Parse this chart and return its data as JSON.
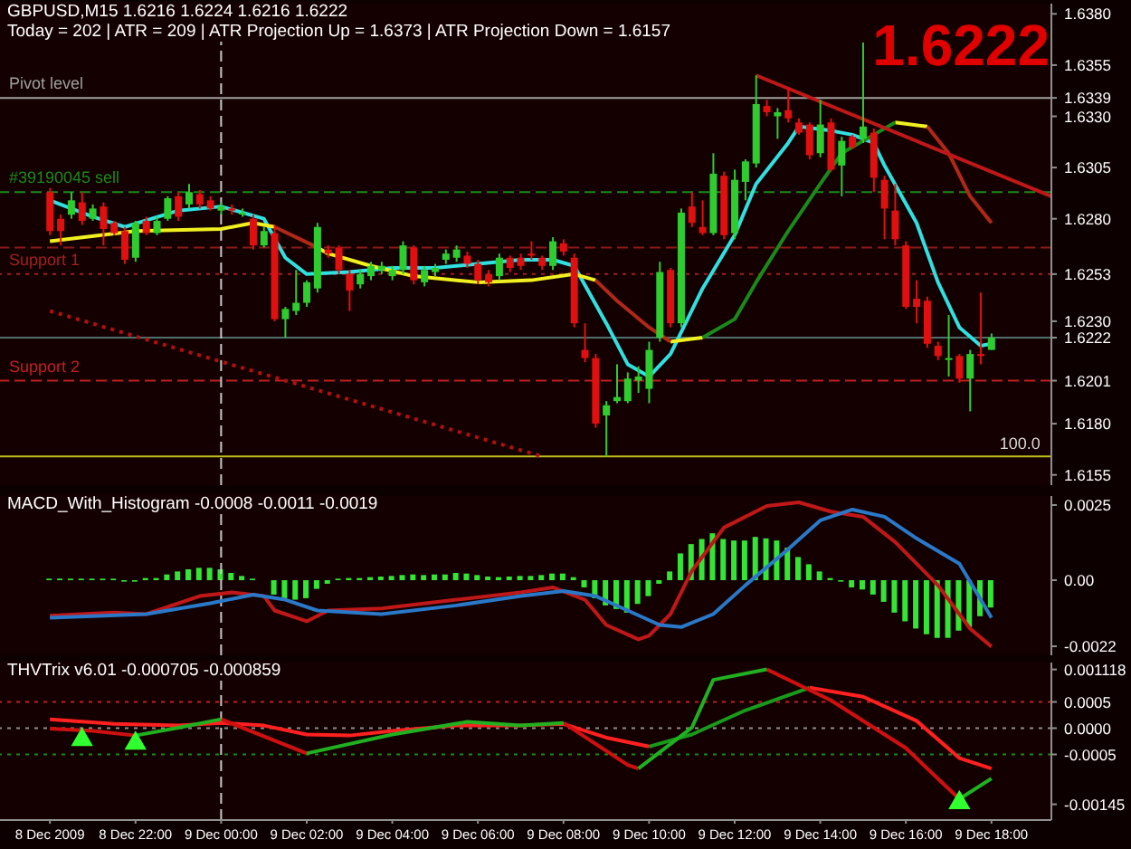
{
  "chart_data": [
    {
      "type": "candlestick",
      "title": "GBPUSD,M15 1.6216 1.6224 1.6216 1.6222",
      "subtitle": "Today = 202 | ATR = 209 | ATR Projection Up = 1.6373 | ATR Projection Down = 1.6157",
      "x": [
        "2009-12-08T20:00",
        "2009-12-08T20:15",
        "2009-12-08T20:30",
        "2009-12-08T20:45",
        "2009-12-08T21:00",
        "2009-12-08T21:15",
        "2009-12-08T21:30",
        "2009-12-08T21:45",
        "2009-12-08T22:00",
        "2009-12-08T22:15",
        "2009-12-08T22:30",
        "2009-12-08T22:45",
        "2009-12-08T23:00",
        "2009-12-08T23:15",
        "2009-12-08T23:30",
        "2009-12-08T23:45",
        "2009-12-09T00:00",
        "2009-12-09T00:15",
        "2009-12-09T00:30",
        "2009-12-09T00:45",
        "2009-12-09T01:00",
        "2009-12-09T01:15",
        "2009-12-09T01:30",
        "2009-12-09T01:45",
        "2009-12-09T02:00",
        "2009-12-09T02:15",
        "2009-12-09T02:30",
        "2009-12-09T02:45",
        "2009-12-09T03:00",
        "2009-12-09T03:15",
        "2009-12-09T03:30",
        "2009-12-09T03:45",
        "2009-12-09T04:00",
        "2009-12-09T04:15",
        "2009-12-09T04:30",
        "2009-12-09T04:45",
        "2009-12-09T05:00",
        "2009-12-09T05:15",
        "2009-12-09T05:30",
        "2009-12-09T05:45",
        "2009-12-09T06:00",
        "2009-12-09T06:15",
        "2009-12-09T06:30",
        "2009-12-09T06:45",
        "2009-12-09T07:00",
        "2009-12-09T07:15",
        "2009-12-09T07:30",
        "2009-12-09T07:45",
        "2009-12-09T08:00",
        "2009-12-09T08:15",
        "2009-12-09T08:30",
        "2009-12-09T08:45",
        "2009-12-09T09:00",
        "2009-12-09T09:15",
        "2009-12-09T09:30",
        "2009-12-09T09:45",
        "2009-12-09T10:00",
        "2009-12-09T10:15",
        "2009-12-09T10:30",
        "2009-12-09T10:45",
        "2009-12-09T11:00",
        "2009-12-09T11:15",
        "2009-12-09T11:30",
        "2009-12-09T11:45",
        "2009-12-09T12:00",
        "2009-12-09T12:15",
        "2009-12-09T12:30",
        "2009-12-09T12:45",
        "2009-12-09T13:00",
        "2009-12-09T13:15",
        "2009-12-09T13:30",
        "2009-12-09T13:45",
        "2009-12-09T14:00",
        "2009-12-09T14:15",
        "2009-12-09T14:30",
        "2009-12-09T14:45",
        "2009-12-09T15:00",
        "2009-12-09T15:15",
        "2009-12-09T15:30",
        "2009-12-09T15:45",
        "2009-12-09T16:00",
        "2009-12-09T16:15",
        "2009-12-09T16:30",
        "2009-12-09T16:45",
        "2009-12-09T17:00",
        "2009-12-09T17:15",
        "2009-12-09T17:30",
        "2009-12-09T17:45",
        "2009-12-09T18:00"
      ],
      "ohlc": [
        [
          1.6293,
          1.6295,
          1.6272,
          1.6274
        ],
        [
          1.628,
          1.6282,
          1.6267,
          1.6274
        ],
        [
          1.6282,
          1.6293,
          1.628,
          1.6289
        ],
        [
          1.6288,
          1.6293,
          1.6277,
          1.6279
        ],
        [
          1.628,
          1.6287,
          1.6279,
          1.6285
        ],
        [
          1.6286,
          1.6288,
          1.6267,
          1.6275
        ],
        [
          1.6278,
          1.6279,
          1.6272,
          1.6273
        ],
        [
          1.6274,
          1.6276,
          1.6258,
          1.626
        ],
        [
          1.6261,
          1.6279,
          1.6259,
          1.6278
        ],
        [
          1.6279,
          1.6281,
          1.6272,
          1.6273
        ],
        [
          1.6273,
          1.6281,
          1.6272,
          1.6279
        ],
        [
          1.628,
          1.6291,
          1.6279,
          1.629
        ],
        [
          1.6291,
          1.6293,
          1.6279,
          1.6281
        ],
        [
          1.6287,
          1.6297,
          1.6285,
          1.6293
        ],
        [
          1.6292,
          1.6294,
          1.6285,
          1.6287
        ],
        [
          1.6289,
          1.6291,
          1.6284,
          1.6285
        ],
        [
          1.6284,
          1.6288,
          1.6282,
          1.6286
        ],
        [
          1.6285,
          1.6287,
          1.6282,
          1.6284
        ],
        [
          1.6283,
          1.6285,
          1.6281,
          1.6283
        ],
        [
          1.628,
          1.6282,
          1.6265,
          1.6267
        ],
        [
          1.6267,
          1.6276,
          1.6266,
          1.6274
        ],
        [
          1.6273,
          1.6277,
          1.623,
          1.6231
        ],
        [
          1.6231,
          1.6237,
          1.6222,
          1.6236
        ],
        [
          1.6235,
          1.6255,
          1.6233,
          1.6239
        ],
        [
          1.6239,
          1.625,
          1.6237,
          1.6249
        ],
        [
          1.6246,
          1.6278,
          1.6244,
          1.6276
        ],
        [
          1.6265,
          1.6267,
          1.6261,
          1.6263
        ],
        [
          1.6266,
          1.6267,
          1.6253,
          1.6255
        ],
        [
          1.6253,
          1.6255,
          1.6235,
          1.6245
        ],
        [
          1.6248,
          1.6255,
          1.6246,
          1.6253
        ],
        [
          1.6252,
          1.6259,
          1.625,
          1.6257
        ],
        [
          1.6255,
          1.6259,
          1.6253,
          1.6257
        ],
        [
          1.6252,
          1.6257,
          1.625,
          1.6255
        ],
        [
          1.6255,
          1.6269,
          1.6253,
          1.6267
        ],
        [
          1.6266,
          1.6267,
          1.6248,
          1.625
        ],
        [
          1.6249,
          1.6257,
          1.6247,
          1.6255
        ],
        [
          1.6254,
          1.6258,
          1.6252,
          1.6256
        ],
        [
          1.626,
          1.6265,
          1.6258,
          1.6263
        ],
        [
          1.6261,
          1.6267,
          1.6259,
          1.6265
        ],
        [
          1.6262,
          1.6264,
          1.6256,
          1.6258
        ],
        [
          1.6258,
          1.626,
          1.6248,
          1.625
        ],
        [
          1.6253,
          1.6255,
          1.6247,
          1.6249
        ],
        [
          1.6252,
          1.6263,
          1.625,
          1.6261
        ],
        [
          1.6261,
          1.6262,
          1.6254,
          1.6256
        ],
        [
          1.6261,
          1.6263,
          1.6255,
          1.6257
        ],
        [
          1.6263,
          1.6269,
          1.626,
          1.6262
        ],
        [
          1.6261,
          1.6262,
          1.6255,
          1.6257
        ],
        [
          1.6257,
          1.6271,
          1.6255,
          1.6269
        ],
        [
          1.6268,
          1.627,
          1.6262,
          1.6264
        ],
        [
          1.6261,
          1.6263,
          1.6227,
          1.6229
        ],
        [
          1.6216,
          1.6229,
          1.621,
          1.6212
        ],
        [
          1.6212,
          1.6214,
          1.6178,
          1.618
        ],
        [
          1.6184,
          1.6191,
          1.6164,
          1.6189
        ],
        [
          1.6191,
          1.6209,
          1.619,
          1.6193
        ],
        [
          1.6191,
          1.6205,
          1.619,
          1.6202
        ],
        [
          1.6201,
          1.6208,
          1.6195,
          1.6203
        ],
        [
          1.6197,
          1.622,
          1.619,
          1.6216
        ],
        [
          1.6222,
          1.6259,
          1.622,
          1.6254
        ],
        [
          1.6255,
          1.6256,
          1.6227,
          1.6229
        ],
        [
          1.6229,
          1.6285,
          1.6227,
          1.6283
        ],
        [
          1.6286,
          1.6293,
          1.6276,
          1.6278
        ],
        [
          1.6276,
          1.6289,
          1.6272,
          1.6273
        ],
        [
          1.6273,
          1.6312,
          1.6272,
          1.6302
        ],
        [
          1.6301,
          1.6303,
          1.627,
          1.6272
        ],
        [
          1.6273,
          1.6304,
          1.627,
          1.6299
        ],
        [
          1.6298,
          1.6309,
          1.6289,
          1.6308
        ],
        [
          1.6307,
          1.635,
          1.6305,
          1.6336
        ],
        [
          1.6335,
          1.6338,
          1.633,
          1.6332
        ],
        [
          1.633,
          1.6334,
          1.6319,
          1.6332
        ],
        [
          1.6333,
          1.6344,
          1.6327,
          1.6329
        ],
        [
          1.6327,
          1.6329,
          1.6321,
          1.6322
        ],
        [
          1.6326,
          1.6327,
          1.6309,
          1.6311
        ],
        [
          1.6312,
          1.6338,
          1.631,
          1.6326
        ],
        [
          1.6327,
          1.6329,
          1.6303,
          1.6304
        ],
        [
          1.6306,
          1.632,
          1.6291,
          1.6318
        ],
        [
          1.632,
          1.6321,
          1.6314,
          1.6315
        ],
        [
          1.6319,
          1.6366,
          1.6317,
          1.6325
        ],
        [
          1.6322,
          1.6324,
          1.6293,
          1.63
        ],
        [
          1.6299,
          1.6301,
          1.627,
          1.6285
        ],
        [
          1.6284,
          1.6297,
          1.6267,
          1.627
        ],
        [
          1.6267,
          1.6269,
          1.6236,
          1.6237
        ],
        [
          1.6241,
          1.625,
          1.6229,
          1.6237
        ],
        [
          1.624,
          1.6242,
          1.6217,
          1.6219
        ],
        [
          1.6218,
          1.622,
          1.6211,
          1.6213
        ],
        [
          1.6212,
          1.6233,
          1.6203,
          1.6212
        ],
        [
          1.6213,
          1.6214,
          1.62,
          1.6202
        ],
        [
          1.6202,
          1.6216,
          1.6186,
          1.6214
        ],
        [
          1.6214,
          1.6244,
          1.6209,
          1.6213
        ],
        [
          1.6216,
          1.6224,
          1.6216,
          1.6222
        ]
      ],
      "colors": [
        "#e01010",
        "#e01010",
        "#2ecc2e",
        "#e01010",
        "#2ecc2e",
        "#e01010",
        "#e01010",
        "#e01010",
        "#2ecc2e",
        "#e01010",
        "#2ecc2e",
        "#2ecc2e",
        "#e01010",
        "#2ecc2e",
        "#e01010",
        "#e01010",
        "#2ecc2e",
        "#e01010",
        "#2ecc2e",
        "#e01010",
        "#2ecc2e",
        "#e01010",
        "#2ecc2e",
        "#2ecc2e",
        "#2ecc2e",
        "#2ecc2e",
        "#e01010",
        "#e01010",
        "#e01010",
        "#2ecc2e",
        "#2ecc2e",
        "#2ecc2e",
        "#2ecc2e",
        "#2ecc2e",
        "#e01010",
        "#2ecc2e",
        "#2ecc2e",
        "#2ecc2e",
        "#2ecc2e",
        "#e01010",
        "#e01010",
        "#e01010",
        "#2ecc2e",
        "#e01010",
        "#e01010",
        "#e01010",
        "#e01010",
        "#2ecc2e",
        "#e01010",
        "#e01010",
        "#e01010",
        "#e01010",
        "#2ecc2e",
        "#2ecc2e",
        "#2ecc2e",
        "#2ecc2e",
        "#2ecc2e",
        "#2ecc2e",
        "#e01010",
        "#2ecc2e",
        "#e01010",
        "#e01010",
        "#2ecc2e",
        "#e01010",
        "#2ecc2e",
        "#2ecc2e",
        "#2ecc2e",
        "#e01010",
        "#2ecc2e",
        "#e01010",
        "#e01010",
        "#e01010",
        "#2ecc2e",
        "#e01010",
        "#2ecc2e",
        "#e01010",
        "#2ecc2e",
        "#e01010",
        "#e01010",
        "#e01010",
        "#e01010",
        "#e01010",
        "#e01010",
        "#e01010",
        "#2ecc2e",
        "#e01010",
        "#2ecc2e",
        "#e01010",
        "#2ecc2e"
      ],
      "series": [
        {
          "type": "line",
          "color": "#30e0e0",
          "x": [
            "2009-12-08T20:00",
            "2009-12-08T21:00",
            "2009-12-08T21:45",
            "2009-12-08T23:00",
            "2009-12-09T00:00",
            "2009-12-09T01:00",
            "2009-12-09T01:30",
            "2009-12-09T02:00",
            "2009-12-09T03:00",
            "2009-12-09T04:00",
            "2009-12-09T05:00",
            "2009-12-09T06:00",
            "2009-12-09T07:00",
            "2009-12-09T07:45",
            "2009-12-09T08:15",
            "2009-12-09T09:00",
            "2009-12-09T09:30",
            "2009-12-09T10:00",
            "2009-12-09T10:30",
            "2009-12-09T11:15",
            "2009-12-09T12:00",
            "2009-12-09T12:30",
            "2009-12-09T13:15",
            "2009-12-09T13:30",
            "2009-12-09T14:15",
            "2009-12-09T14:45",
            "2009-12-09T15:15",
            "2009-12-09T15:30",
            "2009-12-09T16:15",
            "2009-12-09T16:45",
            "2009-12-09T17:15",
            "2009-12-09T17:45",
            "2009-12-09T18:00"
          ],
          "values": [
            1.6289,
            1.6281,
            1.6276,
            1.6284,
            1.6286,
            1.628,
            1.6261,
            1.6253,
            1.6254,
            1.6256,
            1.6256,
            1.6258,
            1.626,
            1.626,
            1.6257,
            1.6229,
            1.6209,
            1.6203,
            1.6214,
            1.6246,
            1.6272,
            1.6297,
            1.6317,
            1.6325,
            1.6323,
            1.6321,
            1.6317,
            1.6306,
            1.6278,
            1.6249,
            1.6227,
            1.6218,
            1.6219
          ]
        },
        {
          "type": "line",
          "color": "#f0f020",
          "x": [
            "2009-12-08T20:00",
            "2009-12-08T22:00",
            "2009-12-09T00:00",
            "2009-12-09T00:45",
            "2009-12-09T01:15",
            "2009-12-09T01:45",
            "2009-12-09T02:15",
            "2009-12-09T02:30",
            "2009-12-09T03:30",
            "2009-12-09T04:30",
            "2009-12-09T06:00",
            "2009-12-09T07:15",
            "2009-12-09T08:15",
            "2009-12-09T08:45",
            "2009-12-09T09:30",
            "2009-12-09T10:30",
            "2009-12-09T11:15",
            "2009-12-09T13:00",
            "2009-12-09T15:45",
            "2009-12-09T16:30"
          ],
          "values": [
            1.6269,
            1.6274,
            1.6275,
            1.6278,
            1.6276,
            null,
            1.6266,
            1.6263,
            1.6257,
            1.6252,
            1.6249,
            1.625,
            1.6253,
            1.625,
            null,
            1.622,
            1.6222,
            null,
            1.6327,
            1.6325
          ]
        },
        {
          "type": "line",
          "color": "#b02818",
          "x": [
            "2009-12-09T01:15",
            "2009-12-09T02:15",
            "2009-12-09T05:00",
            "2009-12-09T08:45",
            "2009-12-09T09:15",
            "2009-12-09T10:00",
            "2009-12-09T10:30",
            "2009-12-09T13:00",
            "2009-12-09T16:30",
            "2009-12-09T17:00",
            "2009-12-09T17:30",
            "2009-12-09T18:00"
          ],
          "values": [
            1.6276,
            1.6266,
            null,
            1.625,
            1.624,
            1.6227,
            1.622,
            null,
            1.6325,
            1.6312,
            1.6291,
            1.6278
          ]
        },
        {
          "type": "line",
          "color": "#1a8a1a",
          "x": [
            "2009-12-09T11:15",
            "2009-12-09T12:00",
            "2009-12-09T12:30",
            "2009-12-09T13:15",
            "2009-12-09T14:00",
            "2009-12-09T14:30",
            "2009-12-09T15:15",
            "2009-12-09T15:45"
          ],
          "values": [
            1.6222,
            1.6231,
            1.6249,
            1.6274,
            1.6297,
            1.6312,
            1.6321,
            1.6327
          ]
        },
        {
          "type": "line",
          "color": "#c01818",
          "x": [
            "2009-12-09T12:30",
            "2009-12-09T19:24"
          ],
          "values": [
            1.635,
            1.6291
          ]
        },
        {
          "type": "line",
          "color": "#b01010",
          "line_style": "dotted",
          "x": [
            "2009-12-08T20:00",
            "2009-12-09T07:30"
          ],
          "values": [
            1.6235,
            1.6164
          ]
        }
      ],
      "ref_lines": [
        {
          "axis": "y",
          "value": 1.6339,
          "color": "#a0a0a0",
          "line_style": "solid",
          "label": "Pivot level"
        },
        {
          "axis": "y",
          "value": 1.6293,
          "color": "#1a8a1a",
          "line_style": "dashed",
          "label": "#39190045 sell"
        },
        {
          "axis": "y",
          "value": 1.6266,
          "color": "#8a1a1a",
          "line_style": "dashed"
        },
        {
          "axis": "y",
          "value": 1.6253,
          "color": "#a02020",
          "line_style": "dotted",
          "label": "Support 1"
        },
        {
          "axis": "y",
          "value": 1.6222,
          "color": "#507070",
          "line_style": "solid"
        },
        {
          "axis": "y",
          "value": 1.6201,
          "color": "#c02020",
          "line_style": "dashed",
          "label": "Support 2"
        },
        {
          "axis": "y",
          "value": 1.6164,
          "color": "#c0c020",
          "line_style": "solid"
        },
        {
          "axis": "x",
          "value": "2009-12-09T00:00",
          "color": "#c8c8c8",
          "line_style": "dashed"
        }
      ],
      "annotations": [
        "1.6222",
        {
          "text": "100.0",
          "x": "2009-12-09T18:40",
          "y": 1.6164
        }
      ],
      "xlim": [
        "2009-12-08T18:50",
        "2009-12-09T19:24"
      ],
      "ylim": [
        1.615,
        1.6385
      ],
      "yticks": [
        {
          "value": 1.638,
          "label": "1.6380"
        },
        1.6355,
        1.6339,
        {
          "value": 1.633,
          "label": "1.6330"
        },
        1.6305,
        {
          "value": 1.628,
          "label": "1.6280"
        },
        1.6253,
        {
          "value": 1.623,
          "label": "1.6230"
        },
        1.6222,
        1.6201,
        {
          "value": 1.618,
          "label": "1.6180"
        },
        1.6155
      ],
      "tick_labels": "y"
    },
    {
      "type": "bar",
      "title": "MACD_With_Histogram -0.0008 -0.0011 -0.0019",
      "x": [
        "2009-12-08T20:00",
        "2009-12-08T20:15",
        "2009-12-08T20:30",
        "2009-12-08T20:45",
        "2009-12-08T21:00",
        "2009-12-08T21:15",
        "2009-12-08T21:30",
        "2009-12-08T21:45",
        "2009-12-08T22:00",
        "2009-12-08T22:15",
        "2009-12-08T22:30",
        "2009-12-08T22:45",
        "2009-12-08T23:00",
        "2009-12-08T23:15",
        "2009-12-08T23:30",
        "2009-12-08T23:45",
        "2009-12-09T00:00",
        "2009-12-09T00:15",
        "2009-12-09T00:30",
        "2009-12-09T00:45",
        "2009-12-09T01:00",
        "2009-12-09T01:15",
        "2009-12-09T01:30",
        "2009-12-09T01:45",
        "2009-12-09T02:00",
        "2009-12-09T02:15",
        "2009-12-09T02:30",
        "2009-12-09T02:45",
        "2009-12-09T03:00",
        "2009-12-09T03:15",
        "2009-12-09T03:30",
        "2009-12-09T03:45",
        "2009-12-09T04:00",
        "2009-12-09T04:15",
        "2009-12-09T04:30",
        "2009-12-09T04:45",
        "2009-12-09T05:00",
        "2009-12-09T05:15",
        "2009-12-09T05:30",
        "2009-12-09T05:45",
        "2009-12-09T06:00",
        "2009-12-09T06:15",
        "2009-12-09T06:30",
        "2009-12-09T06:45",
        "2009-12-09T07:00",
        "2009-12-09T07:15",
        "2009-12-09T07:30",
        "2009-12-09T07:45",
        "2009-12-09T08:00",
        "2009-12-09T08:15",
        "2009-12-09T08:30",
        "2009-12-09T08:45",
        "2009-12-09T09:00",
        "2009-12-09T09:15",
        "2009-12-09T09:30",
        "2009-12-09T09:45",
        "2009-12-09T10:00",
        "2009-12-09T10:15",
        "2009-12-09T10:30",
        "2009-12-09T10:45",
        "2009-12-09T11:00",
        "2009-12-09T11:15",
        "2009-12-09T11:30",
        "2009-12-09T11:45",
        "2009-12-09T12:00",
        "2009-12-09T12:15",
        "2009-12-09T12:30",
        "2009-12-09T12:45",
        "2009-12-09T13:00",
        "2009-12-09T13:15",
        "2009-12-09T13:30",
        "2009-12-09T13:45",
        "2009-12-09T14:00",
        "2009-12-09T14:15",
        "2009-12-09T14:30",
        "2009-12-09T14:45",
        "2009-12-09T15:00",
        "2009-12-09T15:15",
        "2009-12-09T15:30",
        "2009-12-09T15:45",
        "2009-12-09T16:00",
        "2009-12-09T16:15",
        "2009-12-09T16:30",
        "2009-12-09T16:45",
        "2009-12-09T17:00",
        "2009-12-09T17:15",
        "2009-12-09T17:30",
        "2009-12-09T17:45",
        "2009-12-09T18:00"
      ],
      "series": [
        {
          "type": "bar",
          "color": "#33e633",
          "values": [
            5e-05,
            5e-05,
            5e-05,
            5e-05,
            5e-05,
            5e-05,
            5e-05,
            -5e-05,
            -5e-05,
            7e-05,
            7e-05,
            0.00019,
            0.00029,
            0.00036,
            0.00041,
            0.00041,
            0.00036,
            0.00024,
            0.00014,
            5e-05,
            0,
            -0.00048,
            -0.0006,
            -0.00065,
            -0.0006,
            -0.00029,
            -0.00012,
            5e-05,
            7e-05,
            7e-05,
            0.0001,
            0.00012,
            0.00014,
            0.00017,
            0.00019,
            0.00017,
            0.00019,
            0.00019,
            0.00024,
            0.00022,
            0.00017,
            0.00012,
            0.0001,
            0.00012,
            0.00014,
            0.00014,
            0.00017,
            0.00022,
            0.00022,
            0.0001,
            -0.00024,
            -0.0006,
            -0.00084,
            -0.00096,
            -0.00108,
            -0.00079,
            -0.00053,
            -0.00012,
            0.00029,
            0.00089,
            0.0012,
            0.00137,
            0.00156,
            0.00137,
            0.00132,
            0.00132,
            0.00144,
            0.00139,
            0.00132,
            0.00108,
            0.00077,
            0.00053,
            0.00029,
            7e-05,
            -5e-05,
            -0.00024,
            -0.00031,
            -0.00048,
            -0.00072,
            -0.00108,
            -0.00137,
            -0.00161,
            -0.0018,
            -0.00192,
            -0.00192,
            -0.00168,
            -0.00156,
            -0.0012,
            -0.00091
          ]
        },
        {
          "type": "line",
          "color": "#c01818",
          "x": [
            "2009-12-08T20:00",
            "2009-12-08T21:30",
            "2009-12-08T22:15",
            "2009-12-08T23:30",
            "2009-12-09T00:15",
            "2009-12-09T01:00",
            "2009-12-09T01:15",
            "2009-12-09T02:00",
            "2009-12-09T02:30",
            "2009-12-09T03:45",
            "2009-12-09T05:30",
            "2009-12-09T07:00",
            "2009-12-09T07:45",
            "2009-12-09T08:30",
            "2009-12-09T09:00",
            "2009-12-09T09:45",
            "2009-12-09T10:00",
            "2009-12-09T10:30",
            "2009-12-09T11:00",
            "2009-12-09T11:45",
            "2009-12-09T12:45",
            "2009-12-09T13:30",
            "2009-12-09T14:15",
            "2009-12-09T15:00",
            "2009-12-09T15:45",
            "2009-12-09T16:45",
            "2009-12-09T17:30",
            "2009-12-09T18:00"
          ],
          "values": [
            -0.00118,
            -0.00108,
            -0.00113,
            -0.00053,
            -0.00041,
            -0.00053,
            -0.00101,
            -0.00137,
            -0.00101,
            -0.00094,
            -0.00065,
            -0.00041,
            -0.00024,
            -0.00065,
            -0.00149,
            -0.00197,
            -0.00185,
            -0.00113,
            0.00031,
            0.00175,
            0.00247,
            0.00259,
            0.00228,
            0.00211,
            0.00127,
            -0.00017,
            -0.00161,
            -0.00221
          ]
        },
        {
          "type": "line",
          "color": "#2a78c8",
          "x": [
            "2009-12-08T20:00",
            "2009-12-08T22:15",
            "2009-12-08T23:45",
            "2009-12-09T00:45",
            "2009-12-09T01:30",
            "2009-12-09T02:15",
            "2009-12-09T03:45",
            "2009-12-09T05:30",
            "2009-12-09T07:00",
            "2009-12-09T08:00",
            "2009-12-09T08:45",
            "2009-12-09T09:30",
            "2009-12-09T10:15",
            "2009-12-09T10:45",
            "2009-12-09T11:30",
            "2009-12-09T12:15",
            "2009-12-09T13:15",
            "2009-12-09T14:00",
            "2009-12-09T14:45",
            "2009-12-09T15:30",
            "2009-12-09T16:15",
            "2009-12-09T17:15",
            "2009-12-09T18:00"
          ],
          "values": [
            -0.00125,
            -0.00113,
            -0.00077,
            -0.00048,
            -0.00065,
            -0.00101,
            -0.00113,
            -0.00084,
            -0.00053,
            -0.00036,
            -0.00053,
            -0.00101,
            -0.00149,
            -0.00156,
            -0.00113,
            -0.00017,
            0.00103,
            0.00199,
            0.00235,
            0.00211,
            0.00139,
            0.00055,
            -0.00125
          ]
        }
      ],
      "ref_lines": [
        {
          "axis": "x",
          "value": "2009-12-09T00:00",
          "color": "#c8c8c8",
          "line_style": "dashed"
        }
      ],
      "xlim": [
        "2009-12-08T18:50",
        "2009-12-09T19:24"
      ],
      "ylim": [
        -0.0025,
        0.0028
      ],
      "yticks": [
        0.0025,
        {
          "value": 0,
          "label": "0.00"
        },
        -0.0022
      ],
      "tick_labels": "y"
    },
    {
      "type": "line",
      "title": "THVTrix v6.01 -0.000705 -0.000859",
      "series": [
        {
          "type": "line",
          "color": "#ff2020",
          "x": [
            "2009-12-08T20:00",
            "2009-12-08T21:30",
            "2009-12-08T23:00",
            "2009-12-09T00:00",
            "2009-12-09T01:00",
            "2009-12-09T02:00",
            "2009-12-09T03:00",
            "2009-12-09T04:00",
            "2009-12-09T05:30",
            "2009-12-09T07:00",
            "2009-12-09T08:00",
            "2009-12-09T09:00",
            "2009-12-09T10:00",
            "2009-12-09T11:30",
            "2009-12-09T13:45",
            "2009-12-09T15:00",
            "2009-12-09T16:15",
            "2009-12-09T17:15",
            "2009-12-09T18:00"
          ],
          "values": [
            0.00017,
            8e-05,
            5e-05,
            0.0001,
            5e-05,
            -0.00012,
            -0.00014,
            -5e-05,
            5e-05,
            5e-05,
            8e-05,
            -0.00018,
            -0.00035,
            null,
            0.00077,
            0.0006,
            0.00014,
            -0.00057,
            -0.00077
          ]
        },
        {
          "type": "line",
          "color": "#1a9a1a",
          "x": [
            "2009-12-09T10:00",
            "2009-12-09T11:00",
            "2009-12-09T12:15",
            "2009-12-09T13:45"
          ],
          "values": [
            -0.00035,
            -0.00012,
            0.00034,
            0.00077
          ]
        },
        {
          "type": "line",
          "color": "#d01010",
          "x": [
            "2009-12-08T20:00",
            "2009-12-08T21:00",
            "2009-12-08T22:00",
            "2009-12-08T23:00",
            "2009-12-09T00:00",
            "2009-12-09T02:00",
            "2009-12-09T03:00",
            "2009-12-09T08:00",
            "2009-12-09T09:30",
            "2009-12-09T09:45",
            "2009-12-09T11:00",
            "2009-12-09T12:45",
            "2009-12-09T14:15",
            "2009-12-09T16:00",
            "2009-12-09T17:15"
          ],
          "values": [
            -1e-05,
            -5e-05,
            -0.00014,
            null,
            0.00017,
            -0.00048,
            null,
            0.0001,
            -0.0007,
            -0.00077,
            null,
            0.00112,
            0.00053,
            -0.00038,
            -0.00135
          ]
        },
        {
          "type": "line",
          "color": "#20b020",
          "x": [
            "2009-12-08T22:00",
            "2009-12-08T23:00",
            "2009-12-09T00:00",
            "2009-12-09T01:00",
            "2009-12-09T02:00",
            "2009-12-09T04:00",
            "2009-12-09T05:45",
            "2009-12-09T07:00",
            "2009-12-09T08:00",
            "2009-12-09T09:00",
            "2009-12-09T09:45",
            "2009-12-09T11:00",
            "2009-12-09T11:30",
            "2009-12-09T12:45",
            "2009-12-09T14:00",
            "2009-12-09T17:15",
            "2009-12-09T18:00"
          ],
          "values": [
            -0.00014,
            1e-05,
            0.00017,
            null,
            -0.00048,
            -0.00012,
            0.00012,
            5e-05,
            0.0001,
            null,
            -0.00077,
            1e-05,
            0.00092,
            0.00112,
            null,
            -0.00135,
            -0.00096
          ]
        },
        {
          "type": "scatter",
          "color": "#30ff30",
          "marker": "triangle",
          "x": [
            "2009-12-08T20:45",
            "2009-12-08T22:00",
            "2009-12-09T17:15"
          ],
          "values": [
            -0.00022,
            -0.00029,
            -0.00142
          ]
        }
      ],
      "ref_lines": [
        {
          "axis": "y",
          "value": 0.0005,
          "color": "#c02020",
          "line_style": "dotted"
        },
        {
          "axis": "y",
          "value": 0,
          "color": "#909090",
          "line_style": "dotted"
        },
        {
          "axis": "y",
          "value": -0.0005,
          "color": "#1a8a1a",
          "line_style": "dotted"
        },
        {
          "axis": "x",
          "value": "2009-12-09T00:00",
          "color": "#c8c8c8",
          "line_style": "dashed"
        }
      ],
      "xlim": [
        "2009-12-08T18:50",
        "2009-12-09T19:24"
      ],
      "ylim": [
        -0.00175,
        0.00125
      ],
      "xticks": [
        {
          "value": "2009-12-08T20:00",
          "label": "8 Dec 2009"
        },
        {
          "value": "2009-12-08T22:00",
          "label": "8 Dec 22:00"
        },
        {
          "value": "2009-12-09T00:00",
          "label": "9 Dec 00:00"
        },
        {
          "value": "2009-12-09T02:00",
          "label": "9 Dec 02:00"
        },
        {
          "value": "2009-12-09T04:00",
          "label": "9 Dec 04:00"
        },
        {
          "value": "2009-12-09T06:00",
          "label": "9 Dec 06:00"
        },
        {
          "value": "2009-12-09T08:00",
          "label": "9 Dec 08:00"
        },
        {
          "value": "2009-12-09T10:00",
          "label": "9 Dec 10:00"
        },
        {
          "value": "2009-12-09T12:00",
          "label": "9 Dec 12:00"
        },
        {
          "value": "2009-12-09T14:00",
          "label": "9 Dec 14:00"
        },
        {
          "value": "2009-12-09T16:00",
          "label": "9 Dec 16:00"
        },
        {
          "value": "2009-12-09T18:00",
          "label": "9 Dec 18:00"
        }
      ],
      "yticks": [
        0.001118,
        0.0005,
        {
          "value": 0,
          "label": "0.0000"
        },
        -0.0005,
        -0.00145
      ]
    }
  ]
}
